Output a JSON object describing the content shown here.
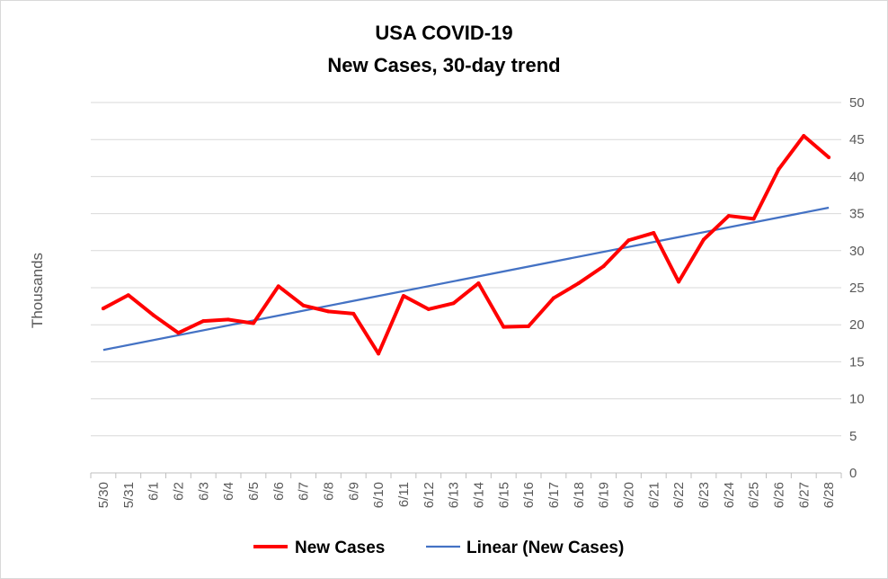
{
  "chart_data": {
    "type": "line",
    "title": [
      "USA COVID-19",
      "New Cases, 30-day trend"
    ],
    "ylabel": "Thousands",
    "ylim": [
      0,
      50
    ],
    "yticks": [
      "0",
      "5",
      "10",
      "15",
      "20",
      "25",
      "30",
      "35",
      "40",
      "45",
      "50"
    ],
    "grid": true,
    "legend_position": "bottom",
    "categories": [
      "5/30",
      "5/31",
      "6/1",
      "6/2",
      "6/3",
      "6/4",
      "6/5",
      "6/6",
      "6/7",
      "6/8",
      "6/9",
      "6/10",
      "6/11",
      "6/12",
      "6/13",
      "6/14",
      "6/15",
      "6/16",
      "6/17",
      "6/18",
      "6/19",
      "6/20",
      "6/21",
      "6/22",
      "6/23",
      "6/24",
      "6/25",
      "6/26",
      "6/27",
      "6/28"
    ],
    "series": [
      {
        "name": "New Cases",
        "color": "#ff0000",
        "values": [
          22.2,
          24.0,
          21.3,
          18.9,
          20.5,
          20.7,
          20.2,
          25.2,
          22.6,
          21.8,
          21.5,
          16.1,
          23.9,
          22.1,
          22.9,
          25.6,
          19.7,
          19.8,
          23.6,
          25.6,
          27.9,
          31.4,
          32.4,
          25.8,
          31.5,
          34.7,
          34.3,
          41.0,
          45.5,
          42.6
        ]
      },
      {
        "name": "Linear (New Cases)",
        "color": "#4472c4",
        "trend": "linear",
        "start": 16.6,
        "end": 35.8
      }
    ]
  }
}
